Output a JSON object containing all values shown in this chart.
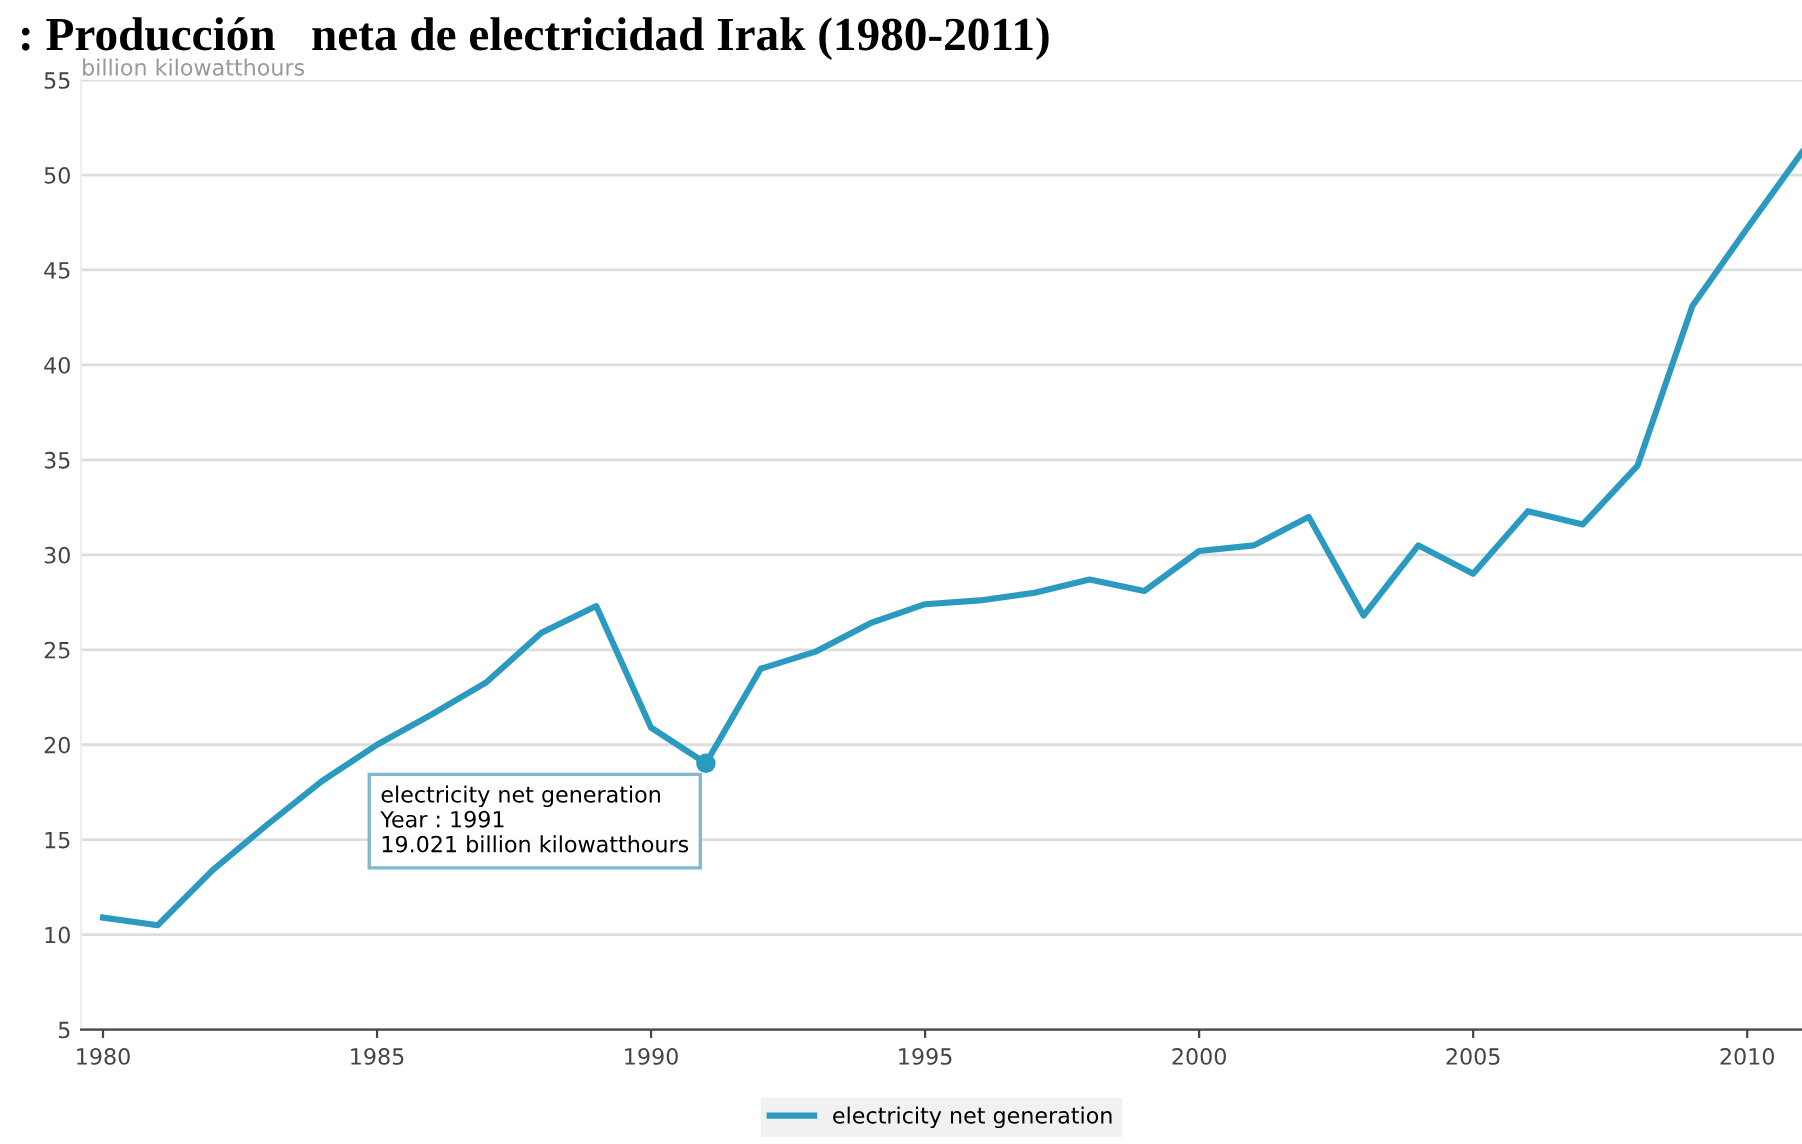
{
  "chart_data": {
    "type": "line",
    "title": ": Producción   neta de electricidad Irak (1980-2011)",
    "ylabel": "billion kilowatthours",
    "x": [
      1980,
      1981,
      1982,
      1983,
      1984,
      1985,
      1986,
      1987,
      1988,
      1989,
      1990,
      1991,
      1992,
      1993,
      1994,
      1995,
      1996,
      1997,
      1998,
      1999,
      2000,
      2001,
      2002,
      2003,
      2004,
      2005,
      2006,
      2007,
      2008,
      2009,
      2010,
      2011
    ],
    "series": [
      {
        "name": "electricity net generation",
        "color": "#2b9ac0",
        "values": [
          10.9,
          10.5,
          13.4,
          15.8,
          18.1,
          20.0,
          21.6,
          23.3,
          25.9,
          27.3,
          20.9,
          19.021,
          24.0,
          24.9,
          26.4,
          27.4,
          27.6,
          28.0,
          28.7,
          28.1,
          30.2,
          30.5,
          32.0,
          26.8,
          30.5,
          29.0,
          32.3,
          31.6,
          34.7,
          43.1,
          47.2,
          51.2
        ]
      }
    ],
    "annotations": [
      {
        "text": "electricity net generation\nYear : 1991\n19.021 billion kilowatthours",
        "x": 1991,
        "y": 19.021
      }
    ],
    "xlim": [
      1979.6,
      2011
    ],
    "xticks": [
      1980,
      1985,
      1990,
      1995,
      2000,
      2005,
      2010
    ],
    "ylim": [
      5,
      55
    ],
    "yticks": [
      5,
      10,
      15,
      20,
      25,
      30,
      35,
      40,
      45,
      50,
      55
    ],
    "grid": "y",
    "legend": "bottom",
    "marker": "none",
    "line_style": "solid"
  }
}
